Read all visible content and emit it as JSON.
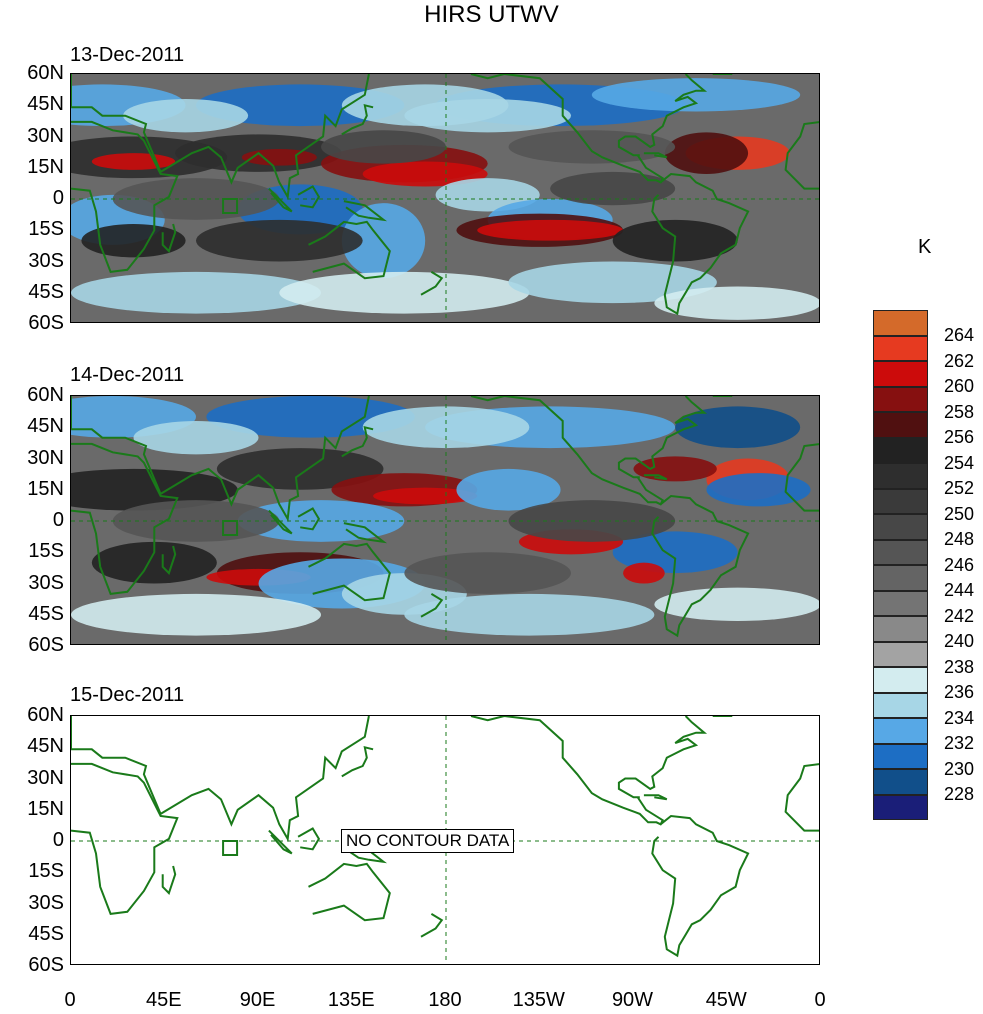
{
  "title": "HIRS UTWV",
  "panels": [
    {
      "date": "13-Dec-2011",
      "has_data": true
    },
    {
      "date": "14-Dec-2011",
      "has_data": true
    },
    {
      "date": "15-Dec-2011",
      "has_data": false,
      "message": "NO CONTOUR DATA"
    }
  ],
  "lat_labels": [
    "60N",
    "45N",
    "30N",
    "15N",
    "0",
    "15S",
    "30S",
    "45S",
    "60S"
  ],
  "lon_labels": [
    "0",
    "45E",
    "90E",
    "135E",
    "180",
    "135W",
    "90W",
    "45W",
    "0"
  ],
  "colorbar": {
    "unit": "K",
    "levels": [
      "264",
      "262",
      "260",
      "258",
      "256",
      "254",
      "252",
      "250",
      "248",
      "246",
      "244",
      "242",
      "240",
      "238",
      "236",
      "234",
      "232",
      "230",
      "228"
    ],
    "colors": [
      "#d46a2a",
      "#e63a20",
      "#cc0b0b",
      "#861010",
      "#501010",
      "#222222",
      "#2e2e2e",
      "#3a3a3a",
      "#474747",
      "#555555",
      "#646464",
      "#747474",
      "#898989",
      "#a3a3a3",
      "#d3ecef",
      "#a7d6e6",
      "#57a8e6",
      "#1d6ec4",
      "#114f8a",
      "#1a1e78"
    ]
  },
  "map_colors": {
    "coast": "#1a7a1a",
    "land": "#ffffff"
  }
}
